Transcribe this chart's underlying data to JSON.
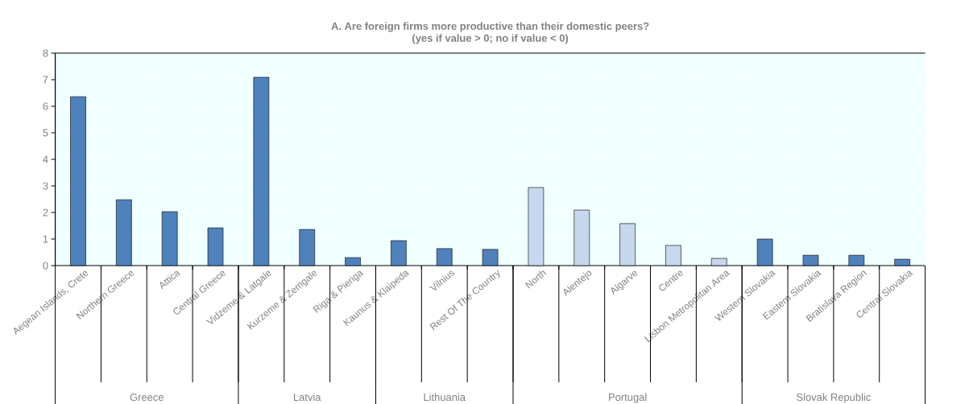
{
  "chart_data": {
    "type": "bar",
    "title": "A. Are foreign firms more productive than their domestic peers?",
    "subtitle": "(yes if value > 0; no if value < 0)",
    "categories": [
      "Aegean Islands, Crete",
      "Northern Greece",
      "Attica",
      "Central Greece",
      "Vidzeme & Latgale",
      "Kurzeme & Zemgale",
      "Riga & Pieriga",
      "Kaunus & Klaipeda",
      "Vilnius",
      "Rest Of The Country",
      "North",
      "Alentejo",
      "Algarve",
      "Centre",
      "Lisbon Metropolitan Area",
      "Western Slovakia",
      "Eastern Slovakia",
      "Bratislava Region",
      "Central Slovakia"
    ],
    "values": [
      6.36,
      2.48,
      2.03,
      1.42,
      7.09,
      1.36,
      0.3,
      0.94,
      0.64,
      0.61,
      2.94,
      2.09,
      1.58,
      0.76,
      0.27,
      1.0,
      0.39,
      0.39,
      0.24
    ],
    "colors": [
      "#4f81bd",
      "#4f81bd",
      "#4f81bd",
      "#4f81bd",
      "#4f81bd",
      "#4f81bd",
      "#4f81bd",
      "#4f81bd",
      "#4f81bd",
      "#4f81bd",
      "#c6d7ee",
      "#c6d7ee",
      "#c6d7ee",
      "#c6d7ee",
      "#c6d7ee",
      "#4f81bd",
      "#4f81bd",
      "#4f81bd",
      "#4f81bd"
    ],
    "ylim": [
      0,
      8
    ],
    "yticks": [
      0,
      1,
      2,
      3,
      4,
      5,
      6,
      7,
      8
    ],
    "grid": true,
    "annotations": [
      "Greece",
      "Latvia",
      "Lithuania",
      "Portugal",
      "Slovak Republic"
    ]
  }
}
